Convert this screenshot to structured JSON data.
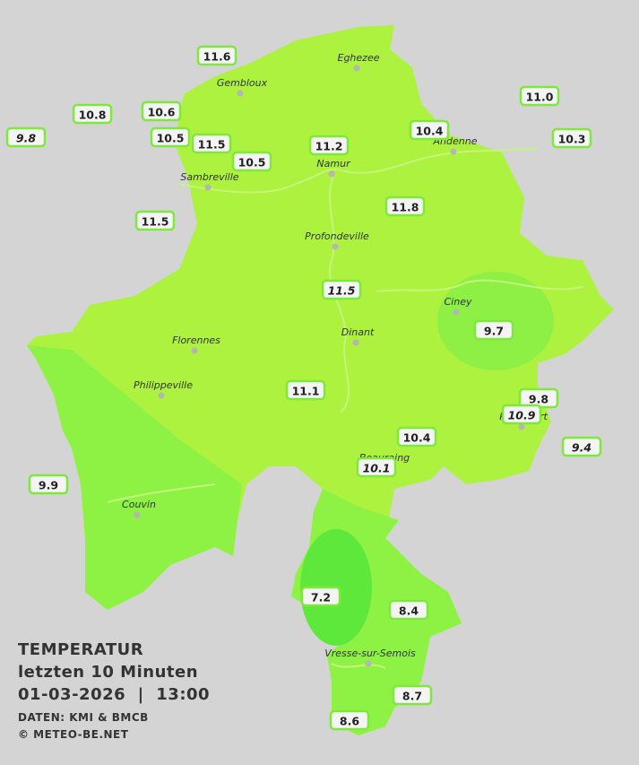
{
  "header": {
    "title": "TEMPERATUR",
    "period": "letzten 10 Minuten",
    "datetime": "01-03-2026  |  13:00",
    "source": "DATEN: KMI & BMCB",
    "credit": "© METEO-BE.NET"
  },
  "cities": [
    {
      "label": "Eghezee"
    },
    {
      "label": "Gembloux"
    },
    {
      "label": "Andenne"
    },
    {
      "label": "Namur"
    },
    {
      "label": "Sambreville"
    },
    {
      "label": "Profondeville"
    },
    {
      "label": "Ciney"
    },
    {
      "label": "Dinant"
    },
    {
      "label": "Florennes"
    },
    {
      "label": "Philippeville"
    },
    {
      "label": "Rochefort"
    },
    {
      "label": "Beauraing"
    },
    {
      "label": "Couvin"
    },
    {
      "label": "Vresse-sur-Semois"
    }
  ],
  "stations": [
    {
      "label": "11.6"
    },
    {
      "label": "10.8"
    },
    {
      "label": "10.6"
    },
    {
      "label": "9.8",
      "italic": true
    },
    {
      "label": "10.5"
    },
    {
      "label": "11.5"
    },
    {
      "label": "10.5"
    },
    {
      "label": "11.2"
    },
    {
      "label": "10.4"
    },
    {
      "label": "11.0"
    },
    {
      "label": "10.3"
    },
    {
      "label": "11.8"
    },
    {
      "label": "11.5"
    },
    {
      "label": "11.5",
      "italic": true
    },
    {
      "label": "9.7"
    },
    {
      "label": "11.1"
    },
    {
      "label": "9.8"
    },
    {
      "label": "10.9",
      "italic": true
    },
    {
      "label": "10.4"
    },
    {
      "label": "9.4",
      "italic": true
    },
    {
      "label": "10.1",
      "italic": true
    },
    {
      "label": "9.9"
    },
    {
      "label": "7.2"
    },
    {
      "label": "8.4"
    },
    {
      "label": "8.7"
    },
    {
      "label": "8.6"
    }
  ]
}
